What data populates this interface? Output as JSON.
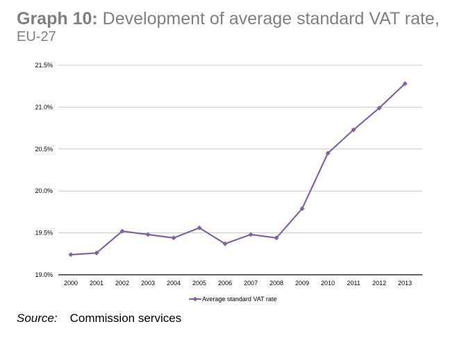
{
  "title_bold": "Graph 10:",
  "title_rest": "Development of average standard VAT rate,",
  "subtitle": "EU-27",
  "source_label": "Source:",
  "source_text": "Commission services",
  "chart_data": {
    "type": "line",
    "title": "",
    "xlabel": "",
    "ylabel": "",
    "categories": [
      "2000",
      "2001",
      "2002",
      "2003",
      "2004",
      "2005",
      "2006",
      "2007",
      "2008",
      "2009",
      "2010",
      "2011",
      "2012",
      "2013"
    ],
    "series": [
      {
        "name": "Average standard VAT rate",
        "color": "#8064a2",
        "values": [
          19.24,
          19.26,
          19.52,
          19.48,
          19.44,
          19.56,
          19.37,
          19.48,
          19.44,
          19.79,
          20.45,
          20.73,
          20.99,
          21.28
        ]
      }
    ],
    "ylim": [
      19.0,
      21.5
    ],
    "yticks": [
      "19.0%",
      "19.5%",
      "20.0%",
      "20.5%",
      "21.0%",
      "21.5%"
    ],
    "grid": true,
    "legend_position": "bottom"
  }
}
